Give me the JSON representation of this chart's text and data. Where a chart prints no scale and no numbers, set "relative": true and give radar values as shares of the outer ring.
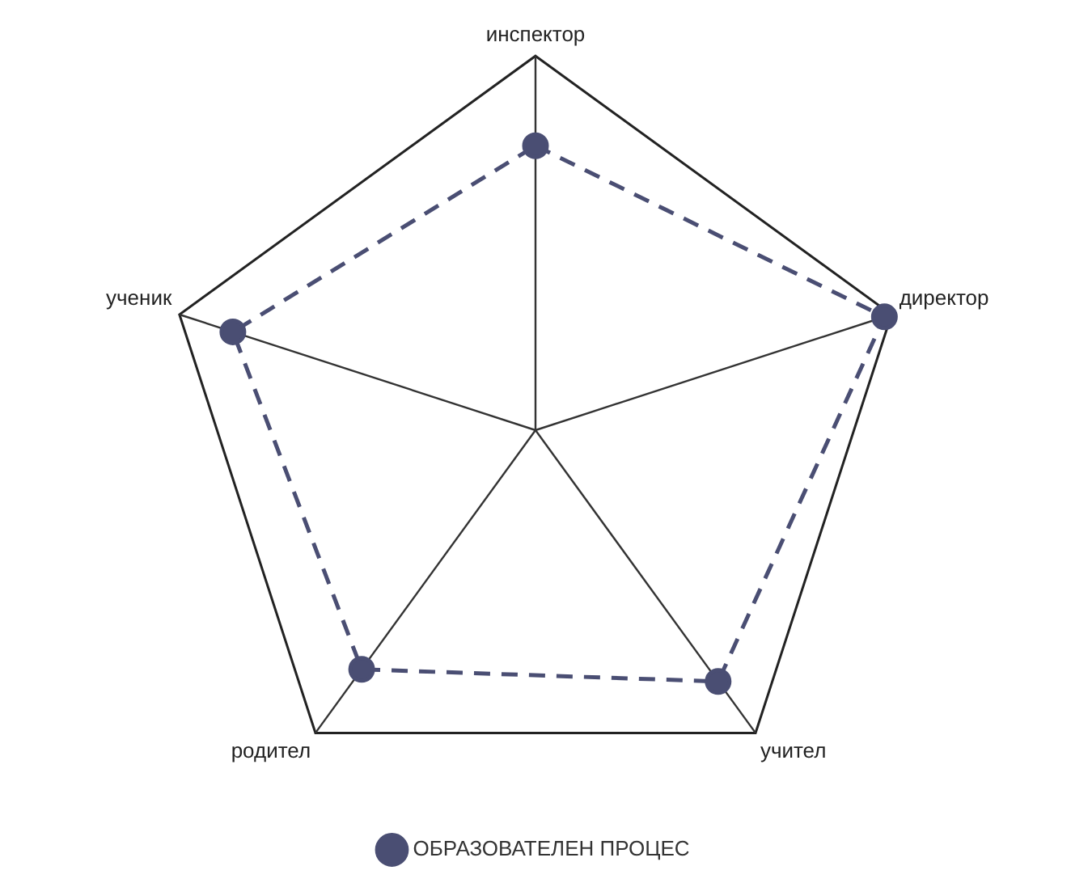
{
  "chart_data": {
    "type": "radar",
    "relative": true,
    "categories": [
      "инспектор",
      "директор",
      "учител",
      "родител",
      "ученик"
    ],
    "series": [
      {
        "name": "ОБРАЗОВАТЕЛЕН ПРОЦЕС",
        "color": "#4a4e73",
        "values": [
          0.76,
          0.98,
          0.83,
          0.79,
          0.85
        ]
      }
    ],
    "grid": true,
    "legend": "bottom",
    "marker": "circle",
    "line_style": "dashed"
  }
}
